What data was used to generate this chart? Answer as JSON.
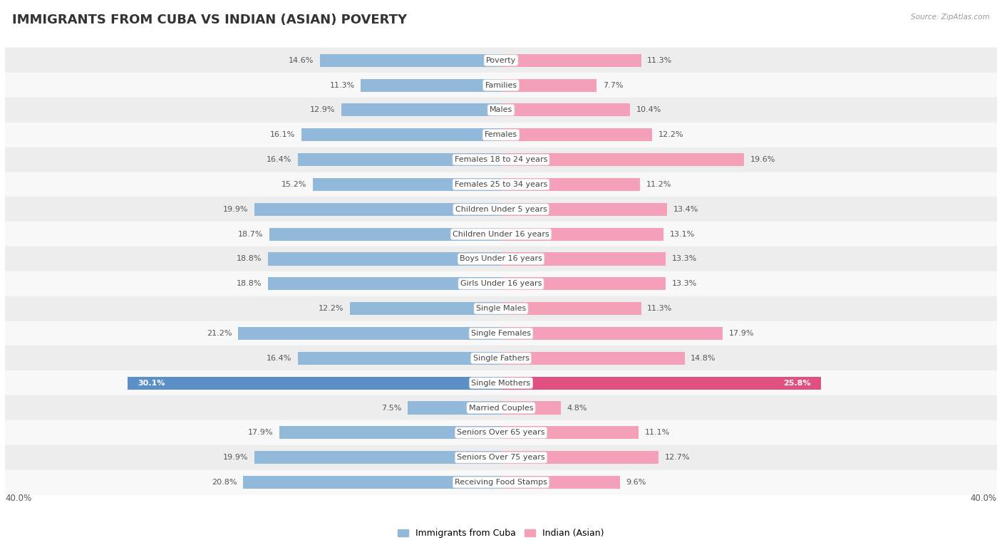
{
  "title": "IMMIGRANTS FROM CUBA VS INDIAN (ASIAN) POVERTY",
  "source": "Source: ZipAtlas.com",
  "categories": [
    "Poverty",
    "Families",
    "Males",
    "Females",
    "Females 18 to 24 years",
    "Females 25 to 34 years",
    "Children Under 5 years",
    "Children Under 16 years",
    "Boys Under 16 years",
    "Girls Under 16 years",
    "Single Males",
    "Single Females",
    "Single Fathers",
    "Single Mothers",
    "Married Couples",
    "Seniors Over 65 years",
    "Seniors Over 75 years",
    "Receiving Food Stamps"
  ],
  "cuba_values": [
    14.6,
    11.3,
    12.9,
    16.1,
    16.4,
    15.2,
    19.9,
    18.7,
    18.8,
    18.8,
    12.2,
    21.2,
    16.4,
    30.1,
    7.5,
    17.9,
    19.9,
    20.8
  ],
  "indian_values": [
    11.3,
    7.7,
    10.4,
    12.2,
    19.6,
    11.2,
    13.4,
    13.1,
    13.3,
    13.3,
    11.3,
    17.9,
    14.8,
    25.8,
    4.8,
    11.1,
    12.7,
    9.6
  ],
  "cuba_color": "#92b8da",
  "indian_color": "#f4a0b8",
  "highlight_cuba_color": "#5b8fc7",
  "highlight_indian_color": "#e05080",
  "highlight_rows": [
    13
  ],
  "axis_limit": 40.0,
  "bar_height": 0.52,
  "row_bg_odd": "#ededee",
  "row_bg_even": "#f8f8f8",
  "title_fontsize": 13,
  "cat_fontsize": 8,
  "value_fontsize": 8,
  "legend_labels": [
    "Immigrants from Cuba",
    "Indian (Asian)"
  ],
  "footer_label": "40.0%",
  "background_color": "#ffffff"
}
